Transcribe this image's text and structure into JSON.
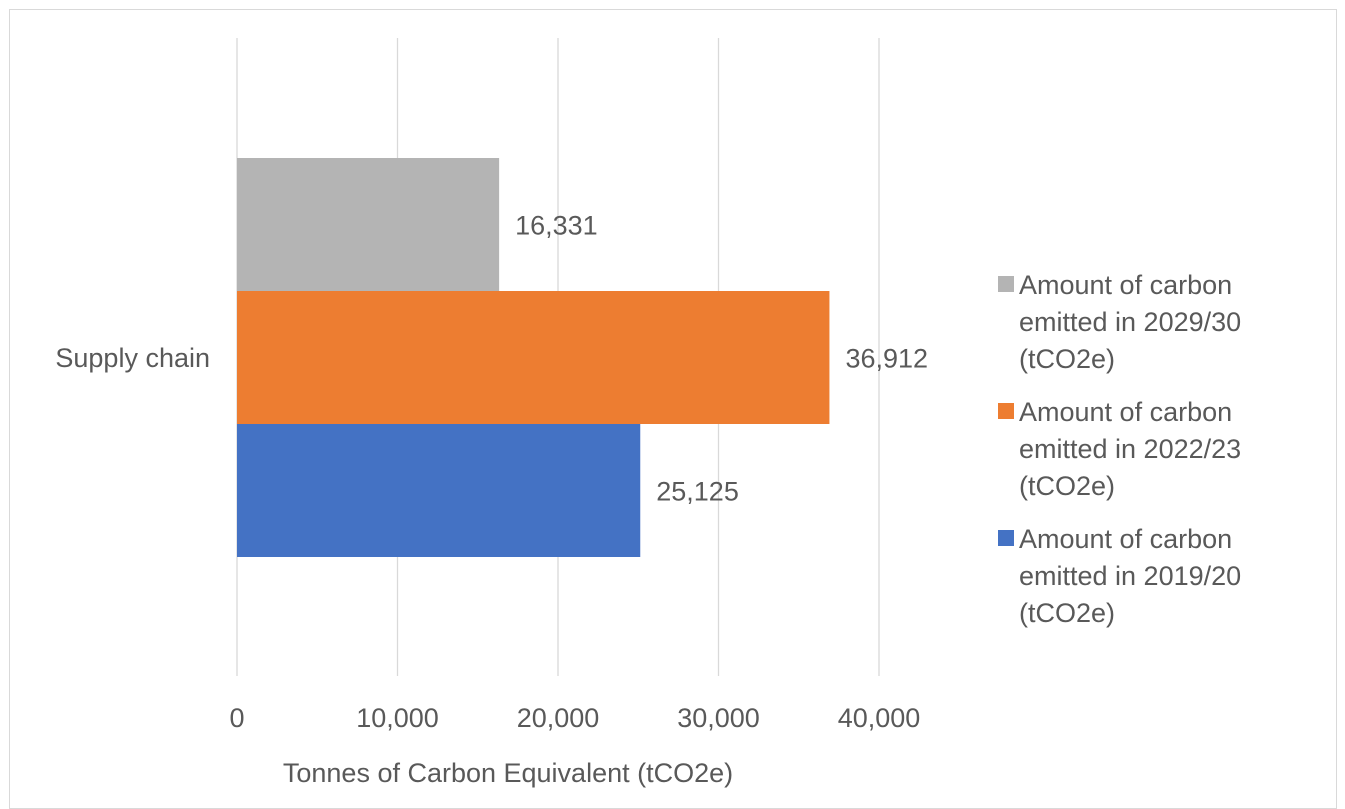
{
  "chart_data": {
    "type": "bar",
    "orientation": "horizontal",
    "categories": [
      "Supply chain"
    ],
    "series": [
      {
        "name": "Amount of carbon emitted in 2019/20 (tCO2e)",
        "name_lines": [
          "Amount of carbon",
          "emitted in 2019/20",
          "(tCO2e)"
        ],
        "values": [
          25125
        ],
        "value_label": "25,125",
        "color": "#4472c4"
      },
      {
        "name": "Amount of carbon emitted in 2022/23 (tCO2e)",
        "name_lines": [
          "Amount of carbon",
          "emitted in 2022/23",
          "(tCO2e)"
        ],
        "values": [
          36912
        ],
        "value_label": "36,912",
        "color": "#ed7d31"
      },
      {
        "name": "Amount of carbon emitted in 2029/30 (tCO2e)",
        "name_lines": [
          "Amount of carbon",
          "emitted in 2029/30",
          "(tCO2e)"
        ],
        "values": [
          16331
        ],
        "value_label": "16,331",
        "color": "#b4b4b4"
      }
    ],
    "xlabel": "Tonnes of Carbon Equivalent (tCO2e)",
    "ylabel": "",
    "xlim": [
      0,
      40000
    ],
    "xticks": [
      0,
      10000,
      20000,
      30000,
      40000
    ],
    "xtick_labels": [
      "0",
      "10,000",
      "20,000",
      "30,000",
      "40,000"
    ],
    "grid": true,
    "legend_position": "right",
    "legend_order": [
      "Amount of carbon emitted in 2029/30 (tCO2e)",
      "Amount of carbon emitted in 2022/23 (tCO2e)",
      "Amount of carbon emitted in 2019/20 (tCO2e)"
    ]
  },
  "colors": {
    "gridline": "#d9d9d9",
    "text": "#595959"
  }
}
